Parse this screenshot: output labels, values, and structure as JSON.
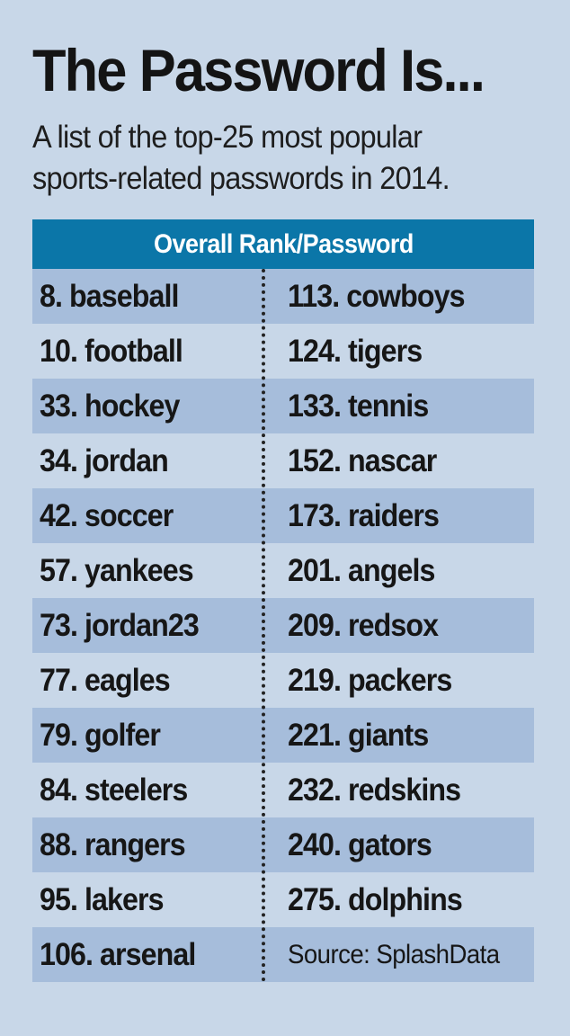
{
  "title": "The Password Is...",
  "subtitle": "A list of the top-25 most popular sports-related passwords in 2014.",
  "table": {
    "header": "Overall Rank/Password",
    "left_column": [
      "8. baseball",
      "10. football",
      "33. hockey",
      "34. jordan",
      "42. soccer",
      "57. yankees",
      "73. jordan23",
      "77. eagles",
      "79. golfer",
      "84. steelers",
      "88. rangers",
      "95. lakers",
      "106. arsenal"
    ],
    "right_column": [
      "113. cowboys",
      "124. tigers",
      "133. tennis",
      "152. nascar",
      "173. raiders",
      "201. angels",
      "209. redsox",
      "219. packers",
      "221. giants",
      "232. redskins",
      "240. gators",
      "275. dolphins"
    ],
    "source": "Source: SplashData"
  },
  "colors": {
    "background": "#c8d7e8",
    "header": "#0b76a8",
    "shaded_row": "#a6bddb"
  }
}
